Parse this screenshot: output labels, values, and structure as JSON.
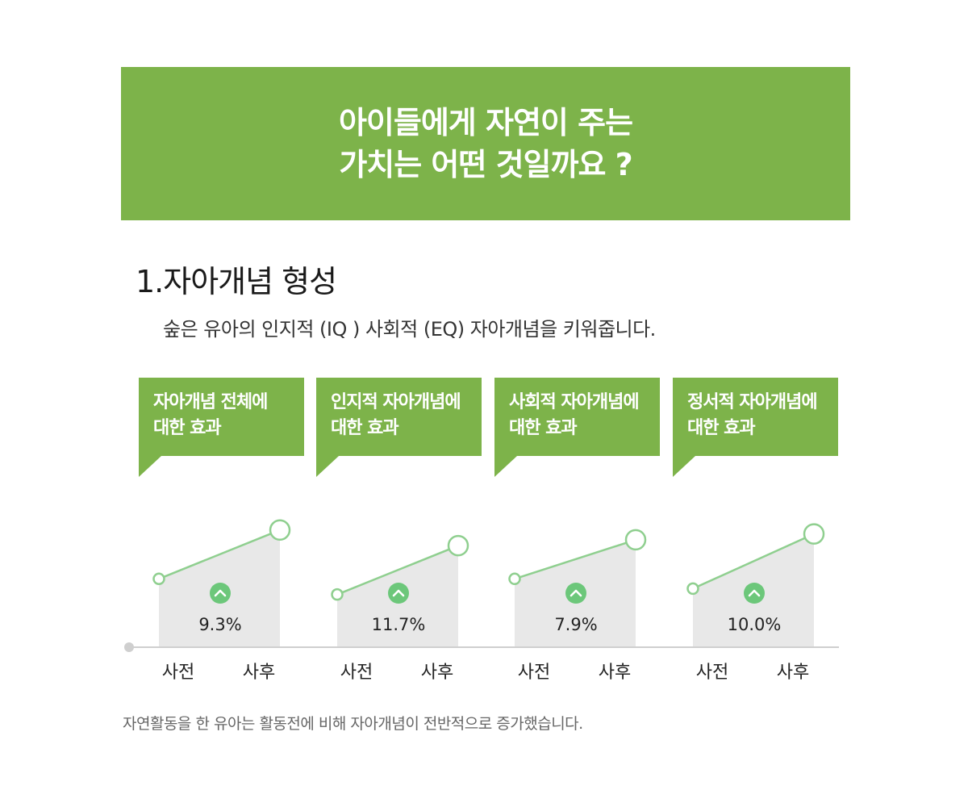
{
  "banner": {
    "line1": "아이들에게 자연이 주는",
    "line2": "가치는 어떤 것일까요 ?"
  },
  "section": {
    "title": "1.자아개념 형성",
    "description": "숲은 유아의 인지적 (IQ ) 사회적 (EQ) 자아개념을 키워줍니다."
  },
  "footnote": "자연활동을 한 유아는 활동전에 비해 자아개념이 전반적으로 증가했습니다.",
  "colors": {
    "accent": "#7db34a",
    "line": "#8fcf8f",
    "area": "#e8e8e8",
    "badge": "#6cc77a"
  },
  "chart_data": [
    {
      "type": "line",
      "title": "자아개념 전체에 대한 효과",
      "title_lines": [
        "자아개념 전체에",
        "대한 효과"
      ],
      "categories": [
        "사전",
        "사후"
      ],
      "relative_levels": [
        0.35,
        0.6
      ],
      "change_label": "9.3%",
      "change_direction": "up"
    },
    {
      "type": "line",
      "title": "인지적 자아개념에 대한 효과",
      "title_lines": [
        "인지적 자아개념에",
        "대한 효과"
      ],
      "categories": [
        "사전",
        "사후"
      ],
      "relative_levels": [
        0.27,
        0.52
      ],
      "change_label": "11.7%",
      "change_direction": "up"
    },
    {
      "type": "line",
      "title": "사회적 자아개념에 대한 효과",
      "title_lines": [
        "사회적 자아개념에",
        "대한 효과"
      ],
      "categories": [
        "사전",
        "사후"
      ],
      "relative_levels": [
        0.35,
        0.55
      ],
      "change_label": "7.9%",
      "change_direction": "up"
    },
    {
      "type": "line",
      "title": "정서적 자아개념에 대한 효과",
      "title_lines": [
        "정서적 자아개념에",
        "대한 효과"
      ],
      "categories": [
        "사전",
        "사후"
      ],
      "relative_levels": [
        0.3,
        0.58
      ],
      "change_label": "10.0%",
      "change_direction": "up"
    }
  ]
}
